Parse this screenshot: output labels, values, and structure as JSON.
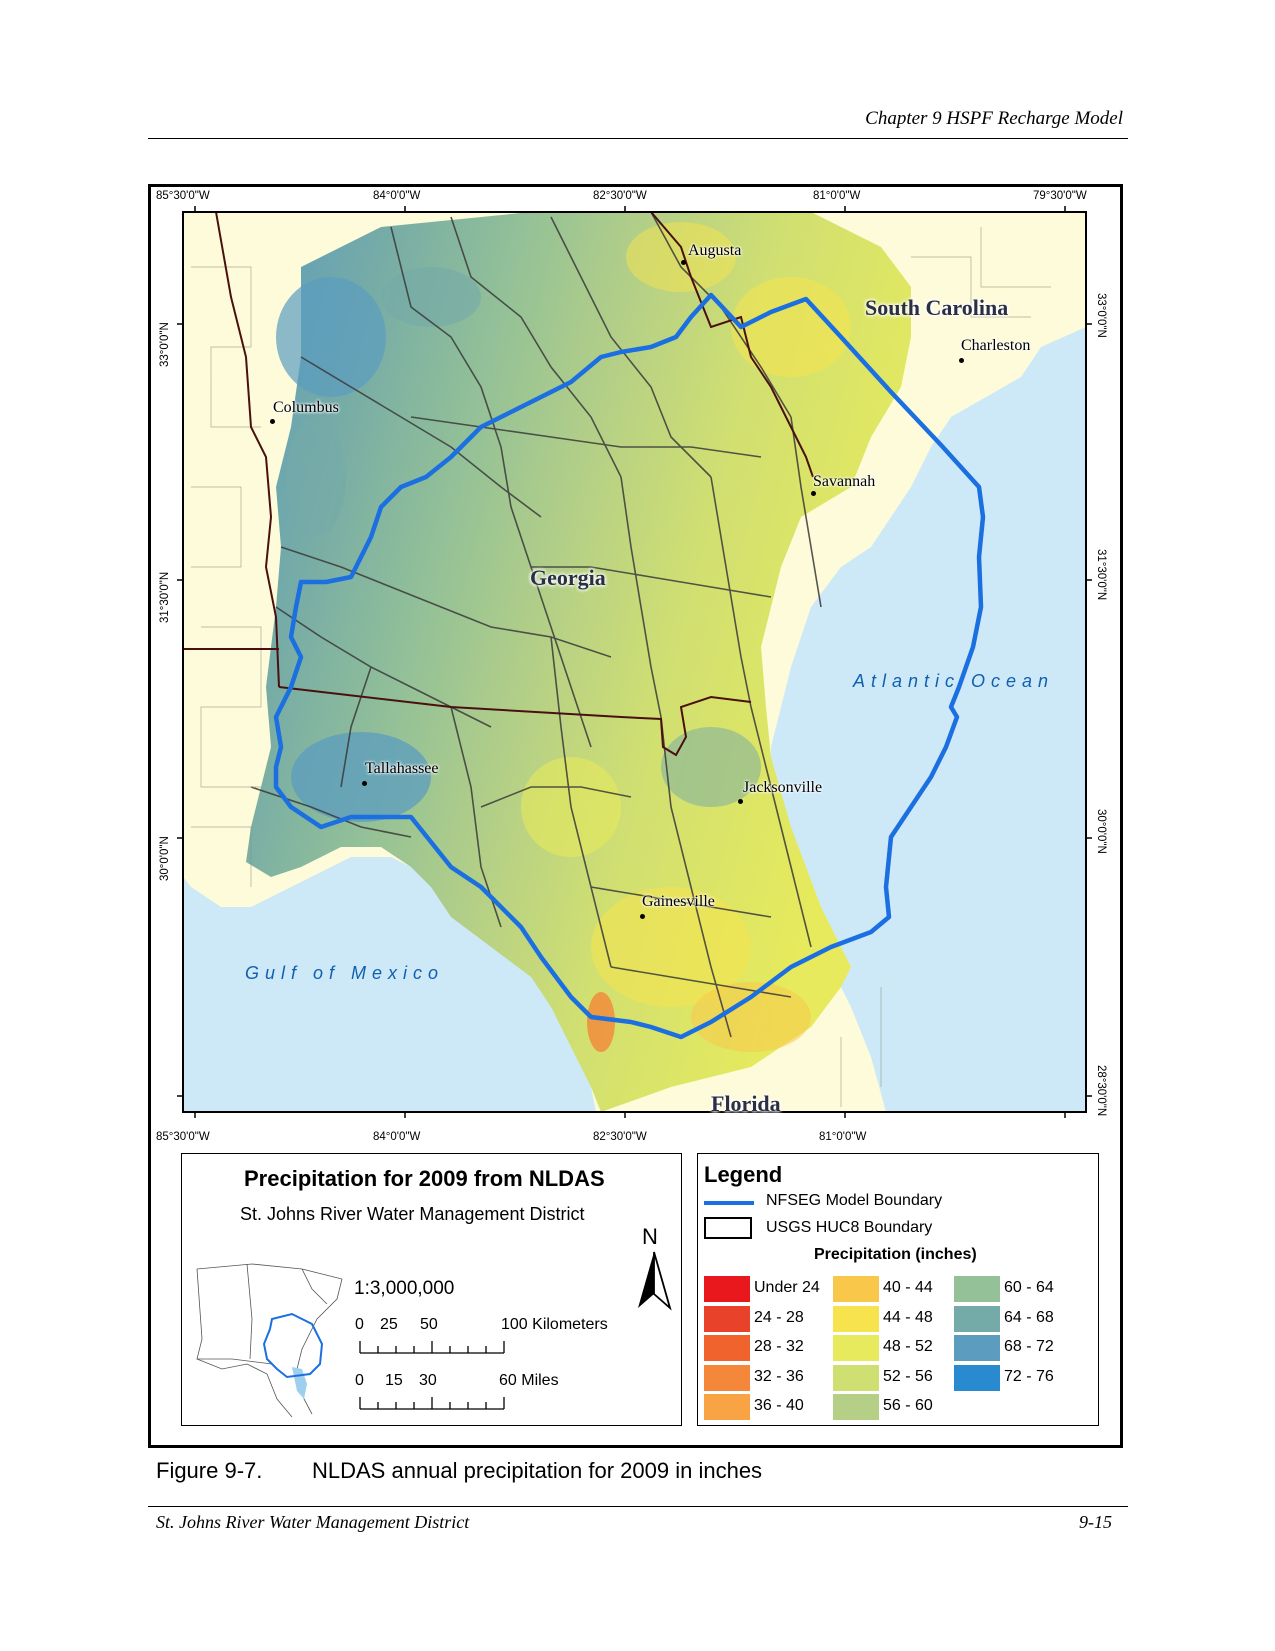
{
  "header": {
    "chapter_title": "Chapter 9 HSPF Recharge Model"
  },
  "map": {
    "top_lon_labels": [
      "85°30'0\"W",
      "84°0'0\"W",
      "82°30'0\"W",
      "81°0'0\"W",
      "79°30'0\"W"
    ],
    "bottom_lon_labels": [
      "85°30'0\"W",
      "84°0'0\"W",
      "82°30'0\"W",
      "81°0'0\"W"
    ],
    "left_lat_labels": [
      "33°0'0\"N",
      "31°30'0\"N",
      "30°0'0\"N"
    ],
    "right_lat_labels": [
      "33°0'0\"N",
      "31°30'0\"N",
      "30°0'0\"N",
      "28°30'0\"N"
    ],
    "cities": {
      "augusta": "Augusta",
      "charleston": "Charleston",
      "columbus": "Columbus",
      "savannah": "Savannah",
      "tallahassee": "Tallahassee",
      "jacksonville": "Jacksonville",
      "gainesville": "Gainesville"
    },
    "states": {
      "south_carolina": "South Carolina",
      "georgia": "Georgia",
      "florida": "Florida"
    },
    "water_bodies": {
      "atlantic": "Atlantic Ocean",
      "gulf": "Gulf of Mexico"
    },
    "colors": {
      "ocean": "#cde9f8",
      "land_outside": "#fdfbd9",
      "boundary_blue": "#1b6fe0",
      "huc_line": "#3a3a3a",
      "state_line": "#4a1010"
    }
  },
  "title_panel": {
    "title": "Precipitation for 2009 from NLDAS",
    "subtitle": "St. Johns River Water Management District",
    "north_letter": "N",
    "scale_ratio": "1:3,000,000",
    "km_ticks": [
      "0",
      "25",
      "50",
      "100 Kilometers"
    ],
    "mile_ticks": [
      "0",
      "15",
      "30",
      "60 Miles"
    ]
  },
  "legend": {
    "heading": "Legend",
    "model_boundary": "NFSEG Model Boundary",
    "huc_boundary": "USGS HUC8 Boundary",
    "precip_heading": "Precipitation (inches)",
    "classes": [
      {
        "label": "Under 24",
        "color": "#e8181c"
      },
      {
        "label": "24 - 28",
        "color": "#e8432a"
      },
      {
        "label": "28 - 32",
        "color": "#f0632c"
      },
      {
        "label": "32 - 36",
        "color": "#f4873a"
      },
      {
        "label": "36 - 40",
        "color": "#f8a444"
      },
      {
        "label": "40 - 44",
        "color": "#f9c84a"
      },
      {
        "label": "44 - 48",
        "color": "#f6e34e"
      },
      {
        "label": "48 - 52",
        "color": "#e6ea5c"
      },
      {
        "label": "52 - 56",
        "color": "#d0df72"
      },
      {
        "label": "56 - 60",
        "color": "#b5d086"
      },
      {
        "label": "60 - 64",
        "color": "#94c197"
      },
      {
        "label": "64 - 68",
        "color": "#74aaa8"
      },
      {
        "label": "68 - 72",
        "color": "#5b9cbf"
      },
      {
        "label": "72 - 76",
        "color": "#2a8ad0"
      }
    ]
  },
  "caption": {
    "figure_number": "Figure 9-7.",
    "text": "NLDAS annual precipitation for 2009 in inches"
  },
  "footer": {
    "left": "St. Johns River Water Management District",
    "right": "9-15"
  }
}
